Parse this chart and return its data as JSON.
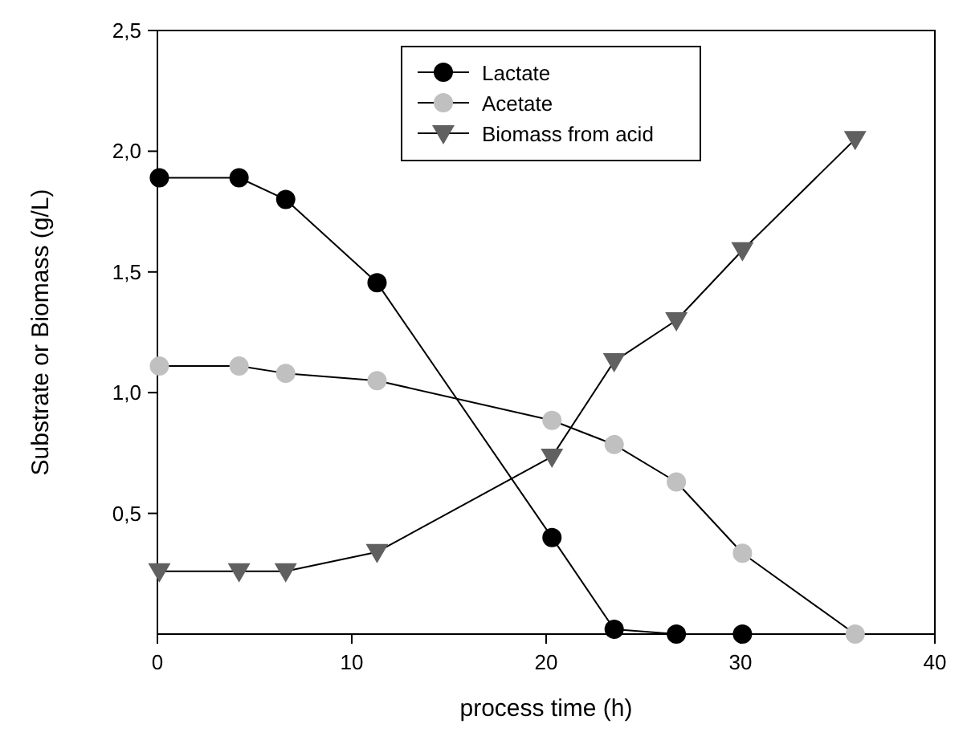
{
  "chart_data": {
    "type": "line",
    "xlabel": "process time (h)",
    "ylabel": "Substrate or Biomass (g/L)",
    "xlim": [
      0,
      40
    ],
    "xticks": [
      0,
      10,
      20,
      30,
      40
    ],
    "ylim": [
      0,
      2.5
    ],
    "yticks": [
      {
        "value": 0.5,
        "label": "0,5"
      },
      {
        "value": 1.0,
        "label": "1,0"
      },
      {
        "value": 1.5,
        "label": "1,5"
      },
      {
        "value": 2.0,
        "label": "2,0"
      },
      {
        "value": 2.5,
        "label": "2,5"
      }
    ],
    "grid": false,
    "legend": "top",
    "line_style": "solid",
    "series": [
      {
        "name": "Lactate",
        "color": "#000000",
        "marker": "circle",
        "x": [
          0.1,
          4.2,
          6.6,
          11.3,
          20.3,
          23.5,
          26.7,
          30.1
        ],
        "values": [
          1.89,
          1.89,
          1.8,
          1.455,
          0.4,
          0.02,
          0,
          0
        ]
      },
      {
        "name": "Acetate",
        "color": "#c0c0c0",
        "marker": "circle",
        "x": [
          0.1,
          4.2,
          6.6,
          11.3,
          20.3,
          23.5,
          26.7,
          30.1,
          35.9
        ],
        "values": [
          1.11,
          1.11,
          1.08,
          1.05,
          0.885,
          0.785,
          0.63,
          0.335,
          0
        ]
      },
      {
        "name": "Biomass from acid",
        "color": "#606060",
        "marker": "triangle-down",
        "x": [
          0.1,
          4.2,
          6.6,
          11.3,
          20.3,
          23.5,
          26.7,
          30.1,
          35.9
        ],
        "values": [
          0.26,
          0.26,
          0.26,
          0.34,
          0.735,
          1.13,
          1.3,
          1.59,
          2.05
        ]
      }
    ]
  }
}
